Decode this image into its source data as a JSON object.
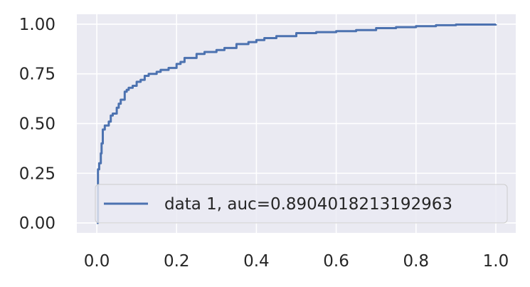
{
  "chart_data": {
    "type": "line",
    "title": "",
    "xlabel": "",
    "ylabel": "",
    "xlim": [
      -0.05,
      1.05
    ],
    "ylim": [
      -0.05,
      1.05
    ],
    "xticks": [
      0.0,
      0.2,
      0.4,
      0.6,
      0.8,
      1.0
    ],
    "xtick_labels": [
      "0.0",
      "0.2",
      "0.4",
      "0.6",
      "0.8",
      "1.0"
    ],
    "yticks": [
      0.0,
      0.25,
      0.5,
      0.75,
      1.0
    ],
    "ytick_labels": [
      "0.00",
      "0.25",
      "0.50",
      "0.75",
      "1.00"
    ],
    "grid": true,
    "legend_position": "lower-right",
    "series": [
      {
        "name": "data 1, auc=0.8904018213192963",
        "color": "#4c72b0",
        "x": [
          0.0,
          0.003,
          0.006,
          0.01,
          0.012,
          0.015,
          0.02,
          0.03,
          0.035,
          0.04,
          0.05,
          0.055,
          0.06,
          0.07,
          0.075,
          0.08,
          0.09,
          0.1,
          0.11,
          0.12,
          0.13,
          0.15,
          0.16,
          0.18,
          0.2,
          0.21,
          0.22,
          0.25,
          0.27,
          0.3,
          0.32,
          0.35,
          0.38,
          0.4,
          0.42,
          0.45,
          0.5,
          0.55,
          0.6,
          0.65,
          0.7,
          0.75,
          0.8,
          0.85,
          0.9,
          1.0
        ],
        "y": [
          0.0,
          0.27,
          0.3,
          0.35,
          0.4,
          0.47,
          0.49,
          0.51,
          0.54,
          0.55,
          0.58,
          0.6,
          0.62,
          0.66,
          0.67,
          0.68,
          0.69,
          0.71,
          0.72,
          0.74,
          0.75,
          0.76,
          0.77,
          0.78,
          0.8,
          0.81,
          0.83,
          0.85,
          0.86,
          0.87,
          0.88,
          0.9,
          0.91,
          0.92,
          0.93,
          0.94,
          0.955,
          0.96,
          0.965,
          0.97,
          0.98,
          0.985,
          0.99,
          0.995,
          0.998,
          1.0
        ]
      }
    ]
  }
}
